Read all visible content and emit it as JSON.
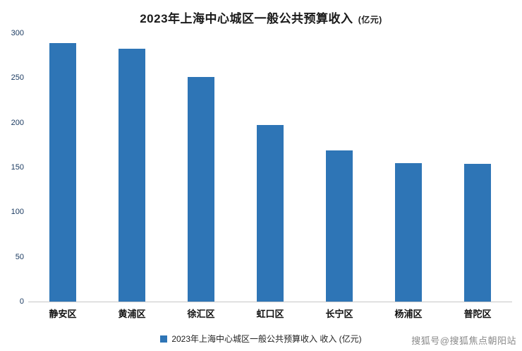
{
  "title": {
    "main": "2023年上海中心城区一般公共预算收入",
    "unit": "(亿元)"
  },
  "chart_data": {
    "type": "bar",
    "title": "2023年上海中心城区一般公共预算收入 (亿元)",
    "categories": [
      "静安区",
      "黄浦区",
      "徐汇区",
      "虹口区",
      "长宁区",
      "杨浦区",
      "普陀区"
    ],
    "values": [
      289,
      283,
      251,
      197,
      169,
      155,
      154
    ],
    "ylim": [
      0,
      300
    ],
    "ytick_step": 50,
    "grid": false,
    "bar_color": "#2E75B6",
    "legend": "2023年上海中心城区一般公共预算收入 收入 (亿元)",
    "legend_position": "bottom",
    "xlabel": "",
    "ylabel": ""
  },
  "watermark": {
    "text": "搜狐号@搜狐焦点朝阳站"
  }
}
